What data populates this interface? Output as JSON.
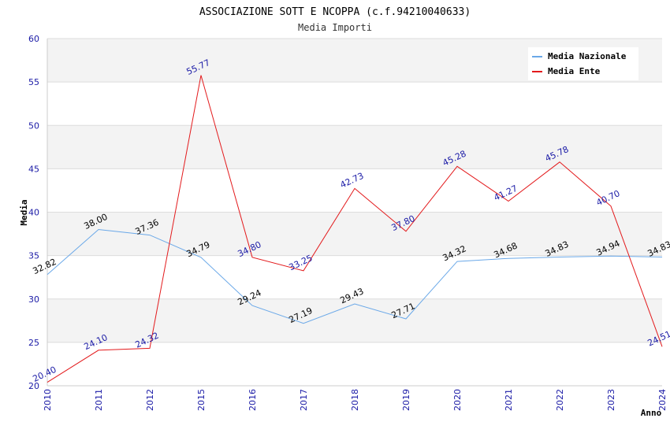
{
  "chart_data": {
    "type": "line",
    "title": "ASSOCIAZIONE SOTT E NCOPPA (c.f.94210040633)",
    "subtitle": "Media Importi",
    "xlabel": "Anno",
    "ylabel": "Media",
    "ylim": [
      20,
      60
    ],
    "yticks": [
      20,
      25,
      30,
      35,
      40,
      45,
      50,
      55,
      60
    ],
    "categories": [
      "2010",
      "2011",
      "2012",
      "2015",
      "2016",
      "2017",
      "2018",
      "2019",
      "2020",
      "2021",
      "2022",
      "2023",
      "2024"
    ],
    "grid": true,
    "legend_position": "top-right",
    "series": [
      {
        "name": "Media Nazionale",
        "color": "#6aa8e8",
        "values": [
          32.82,
          38.0,
          37.36,
          34.79,
          29.24,
          27.19,
          29.43,
          27.71,
          34.32,
          34.68,
          34.83,
          34.94,
          34.83
        ],
        "labels": [
          "32.82",
          "38.00",
          "37.36",
          "34.79",
          "29.24",
          "27.19",
          "29.43",
          "27.71",
          "34.32",
          "34.68",
          "34.83",
          "34.94",
          "34.83"
        ]
      },
      {
        "name": "Media Ente",
        "color": "#e31a1c",
        "values": [
          20.4,
          24.1,
          24.32,
          55.77,
          34.8,
          33.25,
          42.73,
          37.8,
          45.28,
          41.27,
          45.78,
          40.7,
          24.51
        ],
        "labels": [
          "20.40",
          "24.10",
          "24.32",
          "55.77",
          "34.80",
          "33.25",
          "42.73",
          "37.80",
          "45.28",
          "41.27",
          "45.78",
          "40.70",
          "24.51"
        ]
      }
    ]
  }
}
